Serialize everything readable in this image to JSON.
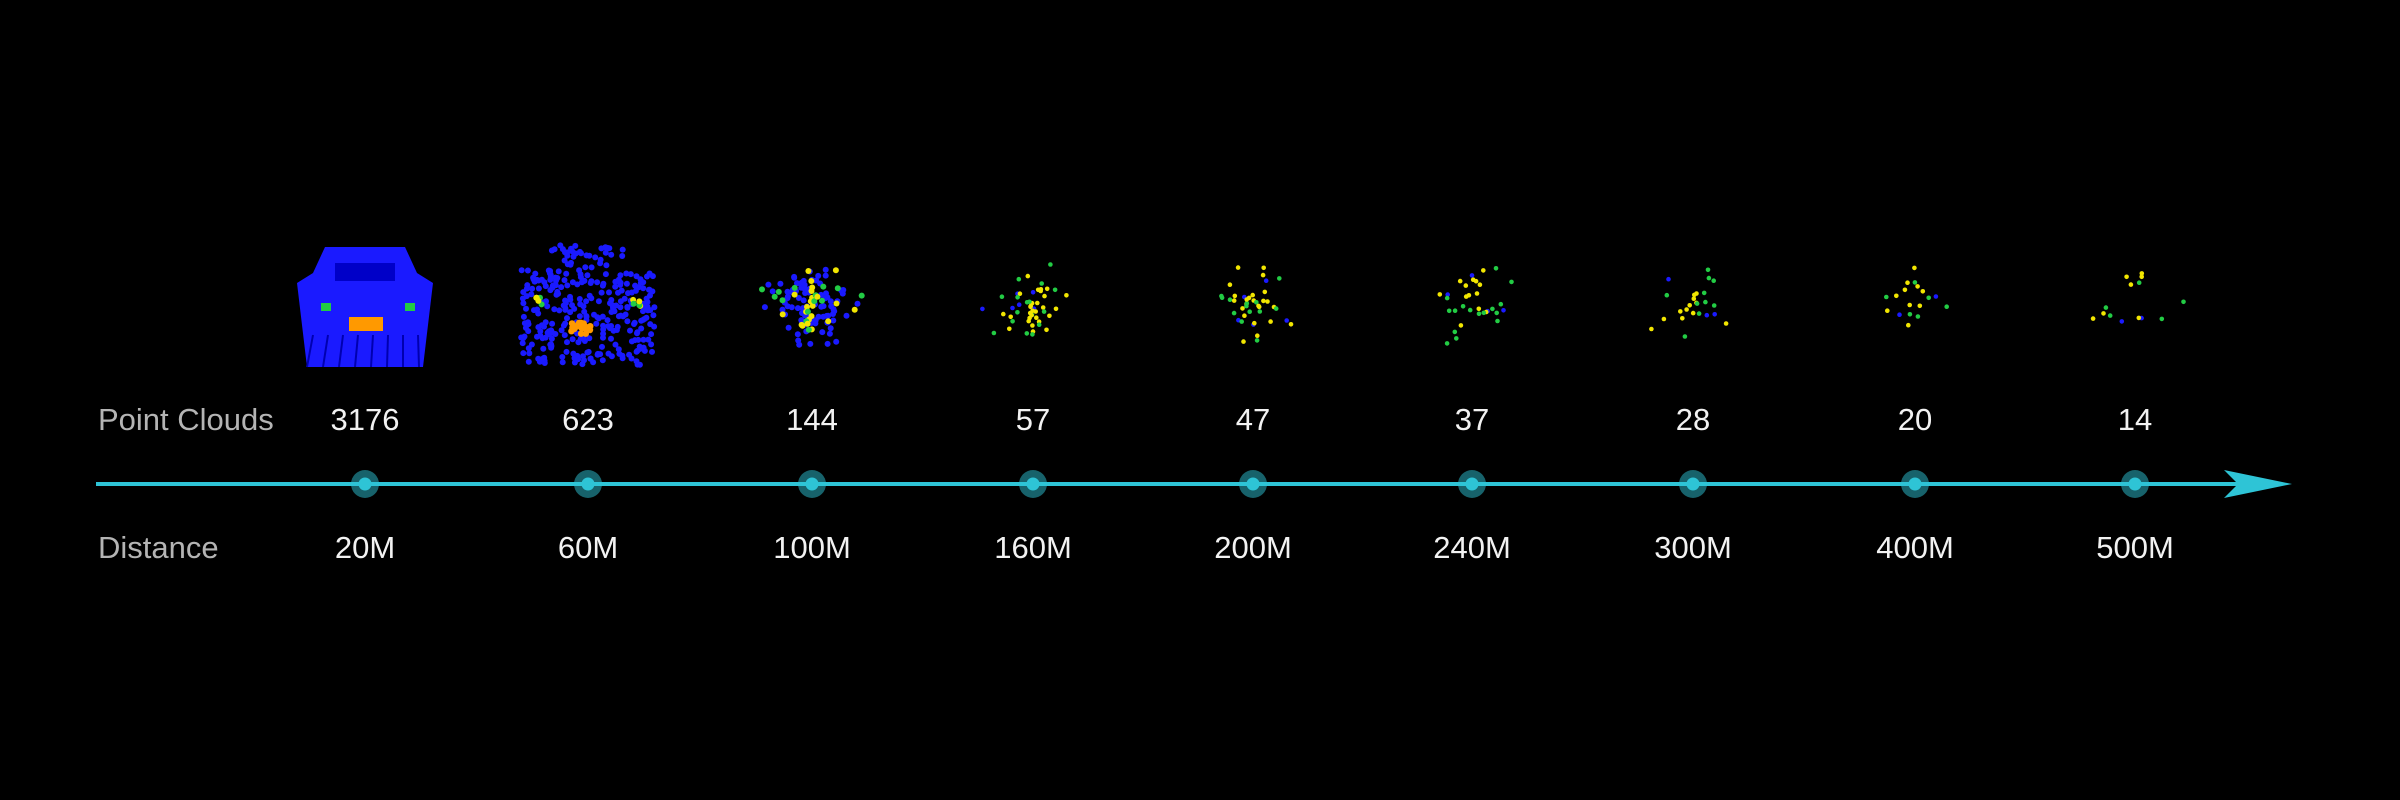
{
  "labels": {
    "point_clouds": "Point Clouds",
    "distance": "Distance"
  },
  "colors": {
    "background": "#000000",
    "axis_line": "#2ec4d6",
    "marker_fill": "#2ec4d6",
    "point_blue": "#1a1aff",
    "point_green": "#22cc44",
    "point_yellow": "#f2e600",
    "point_orange": "#ff9900",
    "label_text": "#b4b4b4",
    "value_text": "#f2f2f2"
  },
  "samples": [
    {
      "distance": "20M",
      "point_count": "3176",
      "count_value": 3176
    },
    {
      "distance": "60M",
      "point_count": "623",
      "count_value": 623
    },
    {
      "distance": "100M",
      "point_count": "144",
      "count_value": 144
    },
    {
      "distance": "160M",
      "point_count": "57",
      "count_value": 57
    },
    {
      "distance": "200M",
      "point_count": "47",
      "count_value": 47
    },
    {
      "distance": "240M",
      "point_count": "37",
      "count_value": 37
    },
    {
      "distance": "300M",
      "point_count": "28",
      "count_value": 28
    },
    {
      "distance": "400M",
      "point_count": "20",
      "count_value": 20
    },
    {
      "distance": "500M",
      "point_count": "14",
      "count_value": 14
    }
  ]
}
